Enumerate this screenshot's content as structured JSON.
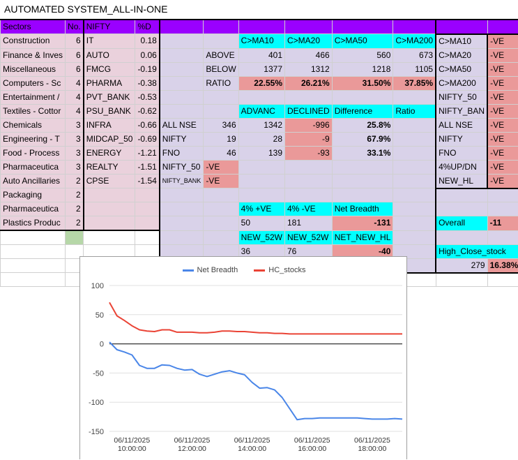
{
  "title": "AUTOMATED SYSTEM_ALL-IN-ONE",
  "header_row": [
    "Sectors",
    "No.",
    "NIFTY",
    "%D"
  ],
  "sectors": [
    {
      "name": "Construction",
      "count": "6"
    },
    {
      "name": "Finance & Inves",
      "count": "6"
    },
    {
      "name": "Miscellaneous",
      "count": "6"
    },
    {
      "name": "Computers - Sc",
      "count": "4"
    },
    {
      "name": "Entertainment /",
      "count": "4"
    },
    {
      "name": "Textiles - Cottor",
      "count": "4"
    },
    {
      "name": "Chemicals",
      "count": "3"
    },
    {
      "name": "Engineering - T",
      "count": "3"
    },
    {
      "name": "Food - Process",
      "count": "3"
    },
    {
      "name": "Pharmaceutica",
      "count": "3"
    },
    {
      "name": "Auto Ancillaries",
      "count": "2"
    },
    {
      "name": "Packaging",
      "count": "2"
    },
    {
      "name": "Pharmaceutica",
      "count": "2"
    },
    {
      "name": "Plastics Produc",
      "count": "2"
    }
  ],
  "indices": [
    {
      "name": "IT",
      "pct": "0.18"
    },
    {
      "name": "AUTO",
      "pct": "0.06"
    },
    {
      "name": "FMCG",
      "pct": "-0.19"
    },
    {
      "name": "PHARMA",
      "pct": "-0.38"
    },
    {
      "name": "PVT_BANK",
      "pct": "-0.53"
    },
    {
      "name": "PSU_BANK",
      "pct": "-0.62"
    },
    {
      "name": "INFRA",
      "pct": "-0.66"
    },
    {
      "name": "MIDCAP_50",
      "pct": "-0.69"
    },
    {
      "name": "ENERGY",
      "pct": "-1.21"
    },
    {
      "name": "REALTY",
      "pct": "-1.51"
    },
    {
      "name": "CPSE",
      "pct": "-1.54"
    }
  ],
  "ma": {
    "headers": [
      "C>MA10",
      "C>MA20",
      "C>MA50",
      "C>MA200"
    ],
    "rows": [
      {
        "label": "ABOVE",
        "vals": [
          "401",
          "466",
          "560",
          "673"
        ]
      },
      {
        "label": "BELOW",
        "vals": [
          "1377",
          "1312",
          "1218",
          "1105"
        ]
      },
      {
        "label": "RATIO",
        "vals": [
          "22.55%",
          "26.21%",
          "31.50%",
          "37.85%"
        ]
      }
    ]
  },
  "adv": {
    "headers": [
      "ADVANC",
      "DECLINED",
      "Difference",
      "Ratio"
    ],
    "rows": [
      {
        "label": "ALL NSE",
        "vals": [
          "346",
          "1342",
          "-996",
          "25.8%"
        ]
      },
      {
        "label": "NIFTY",
        "vals": [
          "19",
          "28",
          "-9",
          "67.9%"
        ]
      },
      {
        "label": "FNO",
        "vals": [
          "46",
          "139",
          "-93",
          "33.1%"
        ]
      }
    ],
    "nifty50": {
      "label": "NIFTY_50",
      "val": "-VE"
    },
    "niftybank": {
      "label": "NIFTY_BANK",
      "val": "-VE"
    }
  },
  "breadth": {
    "headers": [
      "4% +VE",
      "4% -VE",
      "Net Breadth"
    ],
    "vals": [
      "50",
      "181",
      "-131"
    ]
  },
  "newhl": {
    "headers": [
      "NEW_52W",
      "NEW_52W",
      "NET_NEW_HL"
    ],
    "vals": [
      "36",
      "76",
      "-40"
    ]
  },
  "signals": [
    {
      "label": "C>MA10",
      "val": "-VE"
    },
    {
      "label": "C>MA20",
      "val": "-VE"
    },
    {
      "label": "C>MA50",
      "val": "-VE"
    },
    {
      "label": "C>MA200",
      "val": "-VE"
    },
    {
      "label": "NIFTY_50",
      "val": "-VE"
    },
    {
      "label": "NIFTY_BAN",
      "val": "-VE"
    },
    {
      "label": "ALL NSE",
      "val": "-VE"
    },
    {
      "label": "NIFTY",
      "val": "-VE"
    },
    {
      "label": "FNO",
      "val": "-VE"
    },
    {
      "label": "4%UP/DN",
      "val": "-VE"
    },
    {
      "label": "NEW_HL",
      "val": "-VE"
    }
  ],
  "overall": {
    "label": "Overall",
    "val": "-11"
  },
  "high_close": {
    "label": "High_Close_stock",
    "count": "279",
    "pct": "16.38%"
  },
  "colors": {
    "header_purple": "#9a00ff",
    "pink": "#ead1dc",
    "lavender": "#d9d2e9",
    "cyan": "#00ffff",
    "salmon": "#ea9999",
    "green": "#b6d7a8",
    "net_breadth_line": "#4a86e8",
    "hc_stocks_line": "#ea4335"
  },
  "chart_data": {
    "type": "line",
    "series": [
      {
        "name": "Net Breadth",
        "values": [
          3,
          -10,
          -14,
          -19,
          -37,
          -42,
          -42,
          -36,
          -37,
          -42,
          -45,
          -44,
          -52,
          -56,
          -52,
          -48,
          -46,
          -50,
          -53,
          -66,
          -76,
          -75,
          -79,
          -92,
          -111,
          -130,
          -128,
          -128,
          -127,
          -127,
          -127,
          -127,
          -127,
          -127,
          -128,
          -129,
          -129,
          -129,
          -128,
          -129
        ]
      },
      {
        "name": "HC_stocks",
        "values": [
          71,
          48,
          40,
          31,
          24,
          22,
          21,
          24,
          24,
          20,
          20,
          20,
          19,
          19,
          20,
          22,
          22,
          21,
          21,
          20,
          19,
          19,
          18,
          18,
          17,
          17,
          17,
          17,
          17,
          17,
          17,
          17,
          17,
          17,
          17,
          17,
          17,
          17,
          17,
          17
        ]
      }
    ],
    "x_start": "06/11/2025 09:15:00",
    "x_end": "06/11/2025 19:00:00",
    "x_ticks": [
      {
        "date": "06/11/2025",
        "time": "10:00:00"
      },
      {
        "date": "06/11/2025",
        "time": "12:00:00"
      },
      {
        "date": "06/11/2025",
        "time": "14:00:00"
      },
      {
        "date": "06/11/2025",
        "time": "16:00:00"
      },
      {
        "date": "06/11/2025",
        "time": "18:00:00"
      }
    ],
    "y_ticks": [
      "100",
      "50",
      "0",
      "-50",
      "-100",
      "-150"
    ],
    "ylim": [
      -150,
      100
    ],
    "legend": "top-center",
    "grid": true
  }
}
